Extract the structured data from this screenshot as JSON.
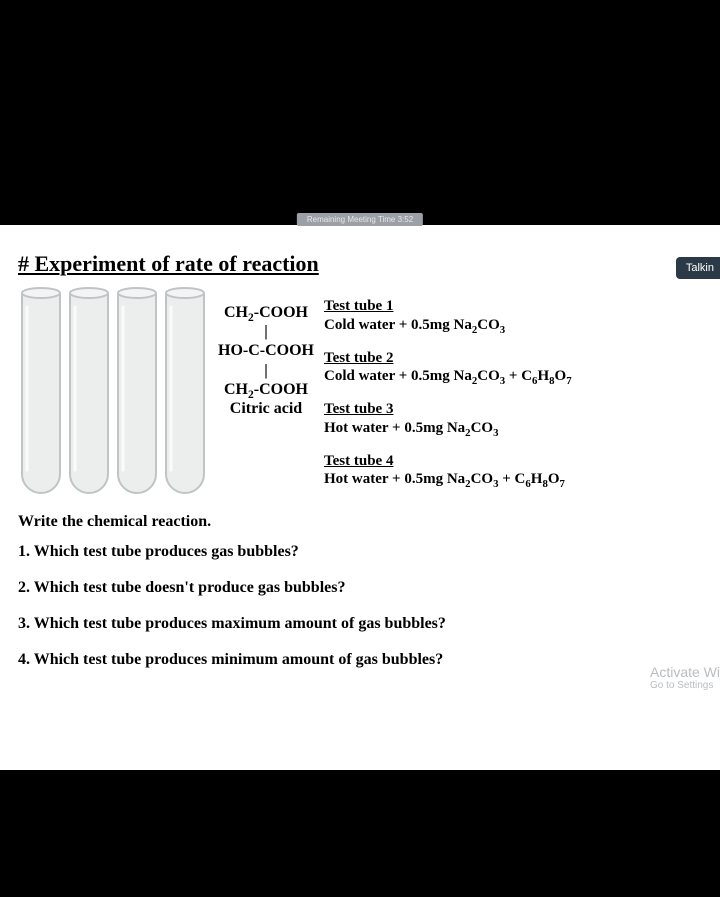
{
  "meta": {
    "timer_text": "Remaining Meeting Time 3:52",
    "talk_button": "Talkin",
    "watermark_line1": "Activate Wi",
    "watermark_line2": "Go to Settings"
  },
  "title": "# Experiment of rate of reaction",
  "citric_acid": {
    "line1": "CH₂-COOH",
    "bond1": "|",
    "line2": "HO-C-COOH",
    "bond2": "|",
    "line3": "CH₂-COOH",
    "name": "Citric acid"
  },
  "test_tubes_svg": {
    "count": 4,
    "tube_width": 38,
    "tube_height": 200,
    "gap": 10,
    "stroke": "#bfc4c6",
    "fill_top": "#f3f5f5",
    "fill_body": "#eceeee"
  },
  "tubes": [
    {
      "label": "Test tube 1",
      "contents": "Cold water + 0.5mg Na₂CO₃"
    },
    {
      "label": "Test tube 2",
      "contents": "Cold water + 0.5mg Na₂CO₃ + C₆H₈O₇"
    },
    {
      "label": "Test tube 3",
      "contents": "Hot water + 0.5mg Na₂CO₃"
    },
    {
      "label": "Test tube 4",
      "contents": "Hot water + 0.5mg Na₂CO₃ + C₆H₈O₇"
    }
  ],
  "instruction": "Write the chemical reaction.",
  "questions": [
    "1. Which test tube produces gas bubbles?",
    "2. Which test tube doesn't produce gas bubbles?",
    "3. Which test tube produces maximum amount of gas bubbles?",
    "4. Which test tube produces minimum amount of gas bubbles?"
  ]
}
